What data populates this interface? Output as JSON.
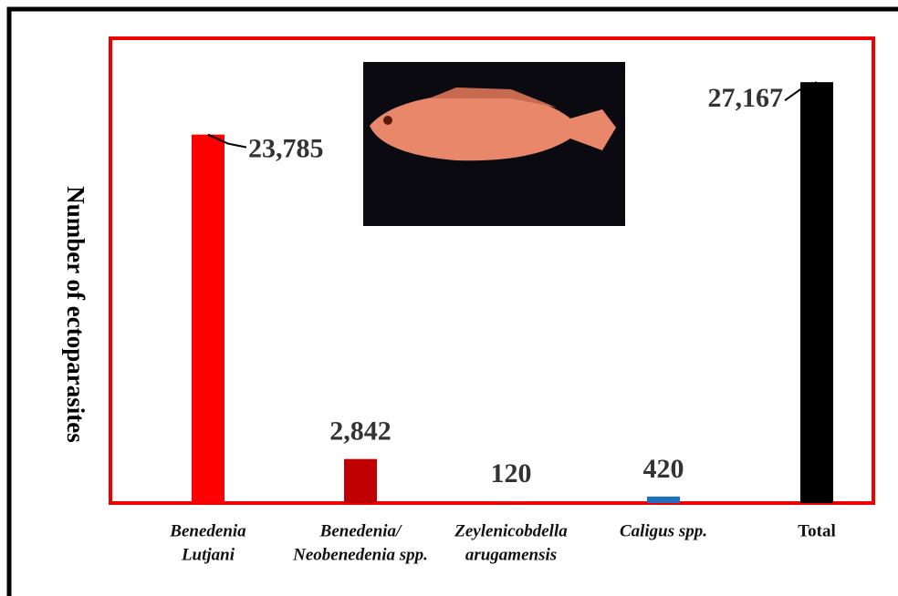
{
  "chart_data": {
    "type": "bar",
    "y_label": "Number of ectoparasites",
    "categories": [
      [
        "Benedenia",
        "Lutjani"
      ],
      [
        "Benedenia/",
        "Neobenedenia spp."
      ],
      [
        "Zeylenicobdella",
        "arugamensis"
      ],
      [
        "Caligus spp."
      ],
      [
        "Total"
      ]
    ],
    "values": [
      23785,
      2842,
      120,
      420,
      27167
    ],
    "value_labels": [
      "23,785",
      "2,842",
      "120",
      "420",
      "27,167"
    ],
    "colors": [
      "#ff0000",
      "#c00000",
      "#e01010",
      "#1f6fc0",
      "#000000"
    ],
    "ylim": [
      0,
      30000
    ]
  }
}
